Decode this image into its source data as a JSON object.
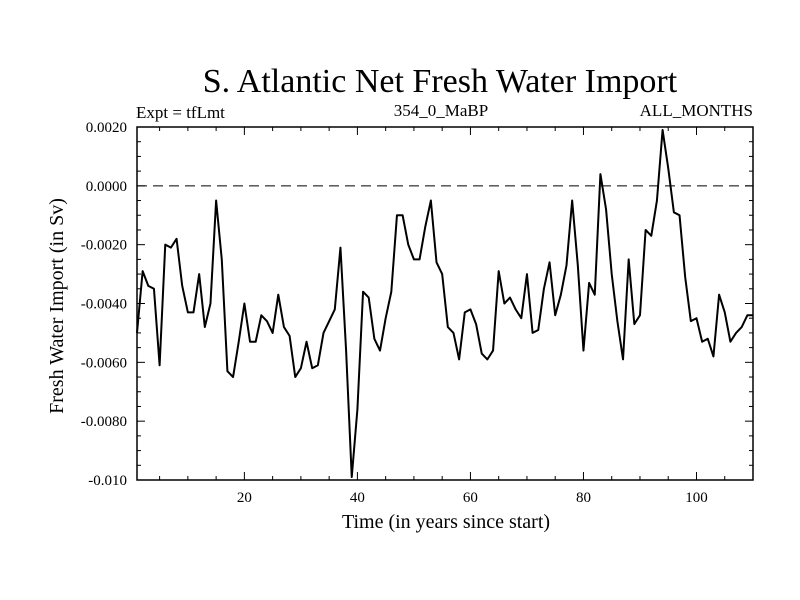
{
  "chart_data": {
    "type": "line",
    "title": "S. Atlantic Net Fresh Water Import",
    "left_label": "Expt = tfLmt",
    "center_label": "354_0_MaBP",
    "right_label": "ALL_MONTHS",
    "xlabel": "Time (in years since start)",
    "ylabel": "Fresh Water Import (in Sv)",
    "xlim": [
      1,
      110
    ],
    "ylim": [
      -0.01,
      0.002
    ],
    "x_ticks": [
      20,
      40,
      60,
      80,
      100
    ],
    "x_tick_labels": [
      "20",
      "40",
      "60",
      "80",
      "100"
    ],
    "y_ticks": [
      -0.01,
      -0.008,
      -0.006,
      -0.004,
      -0.002,
      0.0,
      0.002
    ],
    "y_tick_labels": [
      "-0.010",
      "-0.0080",
      "-0.0060",
      "-0.0040",
      "-0.0020",
      "0.0000",
      "0.0020"
    ],
    "reference_line": {
      "y": 0.0,
      "style": "dashed"
    },
    "series": [
      {
        "name": "Net Fresh Water Import",
        "x": [
          1,
          2,
          3,
          4,
          5,
          6,
          7,
          8,
          9,
          10,
          11,
          12,
          13,
          14,
          15,
          16,
          17,
          18,
          19,
          20,
          21,
          22,
          23,
          24,
          25,
          26,
          27,
          28,
          29,
          30,
          31,
          32,
          33,
          34,
          35,
          36,
          37,
          38,
          39,
          40,
          41,
          42,
          43,
          44,
          45,
          46,
          47,
          48,
          49,
          50,
          51,
          52,
          53,
          54,
          55,
          56,
          57,
          58,
          59,
          60,
          61,
          62,
          63,
          64,
          65,
          66,
          67,
          68,
          69,
          70,
          71,
          72,
          73,
          74,
          75,
          76,
          77,
          78,
          79,
          80,
          81,
          82,
          83,
          84,
          85,
          86,
          87,
          88,
          89,
          90,
          91,
          92,
          93,
          94,
          95,
          96,
          97,
          98,
          99,
          100,
          101,
          102,
          103,
          104,
          105,
          106,
          107,
          108,
          109,
          110
        ],
        "values": [
          -0.005,
          -0.0029,
          -0.0034,
          -0.0035,
          -0.0061,
          -0.002,
          -0.0021,
          -0.0018,
          -0.0034,
          -0.0043,
          -0.0043,
          -0.003,
          -0.0048,
          -0.004,
          -0.0005,
          -0.0025,
          -0.0063,
          -0.0065,
          -0.0053,
          -0.004,
          -0.0053,
          -0.0053,
          -0.0044,
          -0.0046,
          -0.005,
          -0.0037,
          -0.0048,
          -0.0051,
          -0.0065,
          -0.0062,
          -0.0053,
          -0.0062,
          -0.0061,
          -0.005,
          -0.0046,
          -0.0042,
          -0.0021,
          -0.0056,
          -0.0099,
          -0.0076,
          -0.0036,
          -0.0038,
          -0.0052,
          -0.0056,
          -0.0045,
          -0.0036,
          -0.001,
          -0.001,
          -0.002,
          -0.0025,
          -0.0025,
          -0.0014,
          -0.0005,
          -0.0026,
          -0.003,
          -0.0048,
          -0.005,
          -0.0059,
          -0.0043,
          -0.0042,
          -0.0047,
          -0.0057,
          -0.0059,
          -0.0056,
          -0.0029,
          -0.004,
          -0.0038,
          -0.0042,
          -0.0045,
          -0.003,
          -0.005,
          -0.0049,
          -0.0035,
          -0.0026,
          -0.0044,
          -0.0037,
          -0.0027,
          -0.0005,
          -0.0027,
          -0.0056,
          -0.0033,
          -0.0037,
          0.0004,
          -0.0008,
          -0.003,
          -0.0046,
          -0.0059,
          -0.0025,
          -0.0047,
          -0.0044,
          -0.0015,
          -0.0017,
          -0.0005,
          0.0019,
          0.0006,
          -0.0009,
          -0.001,
          -0.0031,
          -0.0046,
          -0.0045,
          -0.0053,
          -0.0052,
          -0.0058,
          -0.0037,
          -0.0043,
          -0.0053,
          -0.005,
          -0.0048,
          -0.0044,
          -0.0044
        ]
      }
    ]
  }
}
